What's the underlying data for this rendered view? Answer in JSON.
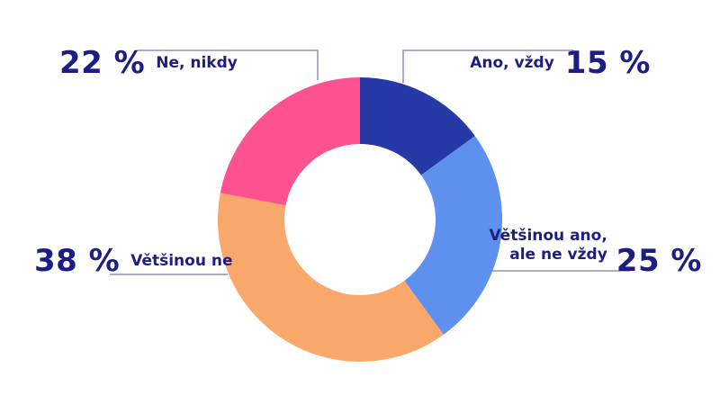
{
  "chart_data": {
    "type": "pie",
    "donut": true,
    "start_angle_deg_from_top": 0,
    "direction": "clockwise",
    "total": 100,
    "segments": [
      {
        "label": "Ano, vždy",
        "pct_label": "15 %",
        "value": 15,
        "color": "#2639a6"
      },
      {
        "label": "Většinou ano, ale ne vždy",
        "pct_label": "25 %",
        "value": 25,
        "color": "#5e90ee",
        "label_lines": [
          "Většinou ano,",
          "ale ne vždy"
        ]
      },
      {
        "label": "Většinou ne",
        "pct_label": "38 %",
        "value": 38,
        "color": "#f9a76b"
      },
      {
        "label": "Ne, nikdy",
        "pct_label": "22 %",
        "value": 22,
        "color": "#fd5190"
      }
    ],
    "title": "",
    "legend_position": "callouts",
    "colors": {
      "text": "#1d1d82",
      "leader_line": "#9191b3",
      "background": "#ffffff"
    }
  }
}
